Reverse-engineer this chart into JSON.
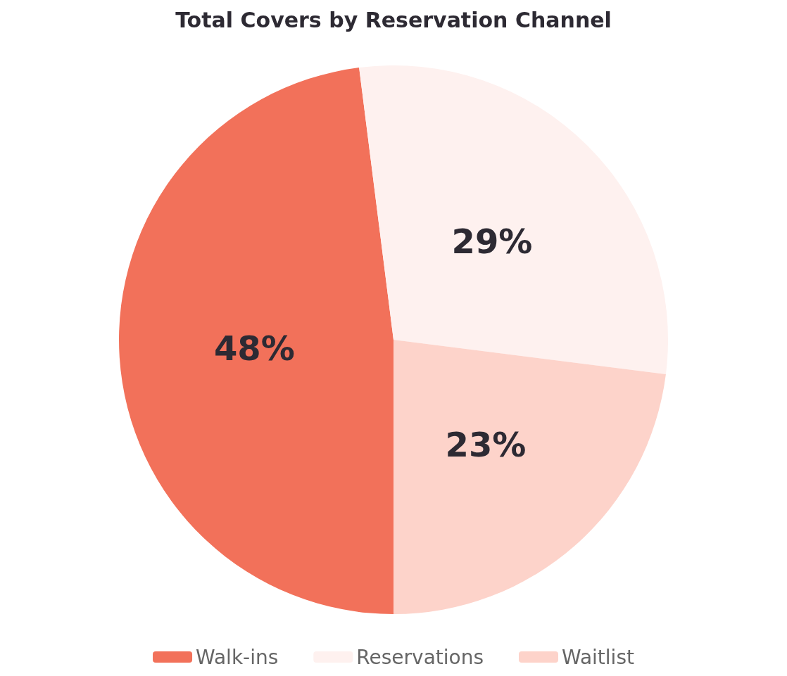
{
  "chart_data": {
    "type": "pie",
    "title": "Total Covers by Reservation Channel",
    "categories": [
      "Walk-ins",
      "Reservations",
      "Waitlist"
    ],
    "values": [
      48,
      29,
      23
    ],
    "colors": [
      "#f2715a",
      "#fef1ef",
      "#fdd3ca"
    ],
    "value_labels": [
      "48%",
      "29%",
      "23%"
    ],
    "legend": "bottom"
  }
}
